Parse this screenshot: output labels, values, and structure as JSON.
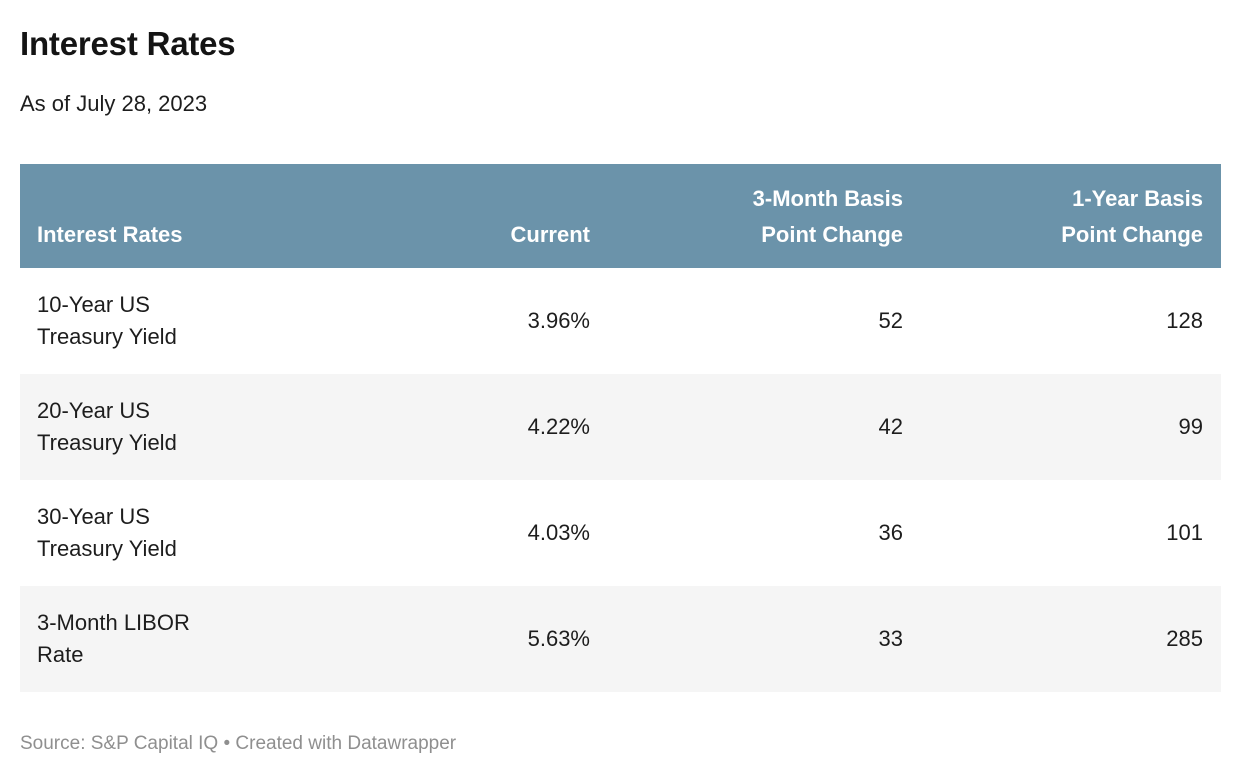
{
  "header": {
    "title": "Interest Rates",
    "subtitle": "As of July 28, 2023"
  },
  "table": {
    "columns": [
      {
        "id": "label",
        "label": "Interest Rates"
      },
      {
        "id": "current",
        "label": "Current"
      },
      {
        "id": "bp3m",
        "label": "3-Month Basis\nPoint Change"
      },
      {
        "id": "bp1y",
        "label": "1-Year Basis\nPoint Change"
      }
    ],
    "rows": [
      {
        "label": "10-Year US\nTreasury Yield",
        "current": "3.96%",
        "bp3m": "52",
        "bp1y": "128"
      },
      {
        "label": "20-Year US\nTreasury Yield",
        "current": "4.22%",
        "bp3m": "42",
        "bp1y": "99"
      },
      {
        "label": "30-Year US\nTreasury Yield",
        "current": "4.03%",
        "bp3m": "36",
        "bp1y": "101"
      },
      {
        "label": "3-Month LIBOR\nRate",
        "current": "5.63%",
        "bp3m": "33",
        "bp1y": "285"
      }
    ]
  },
  "footer": {
    "text": "Source: S&P Capital IQ • Created with Datawrapper"
  },
  "colors": {
    "header_bg": "#6b93aa",
    "header_text": "#ffffff",
    "row_alt_bg": "#f5f5f5",
    "body_text": "#1d1d1d",
    "footer_text": "#8f8f8f",
    "page_bg": "#ffffff"
  },
  "chart_data": {
    "type": "table",
    "title": "Interest Rates",
    "subtitle": "As of July 28, 2023",
    "columns": [
      "Interest Rates",
      "Current",
      "3-Month Basis Point Change",
      "1-Year Basis Point Change"
    ],
    "rows": [
      [
        "10-Year US Treasury Yield",
        "3.96%",
        52,
        128
      ],
      [
        "20-Year US Treasury Yield",
        "4.22%",
        42,
        99
      ],
      [
        "30-Year US Treasury Yield",
        "4.03%",
        36,
        101
      ],
      [
        "3-Month LIBOR Rate",
        "5.63%",
        33,
        285
      ]
    ],
    "source": "S&P Capital IQ",
    "attribution": "Created with Datawrapper"
  }
}
